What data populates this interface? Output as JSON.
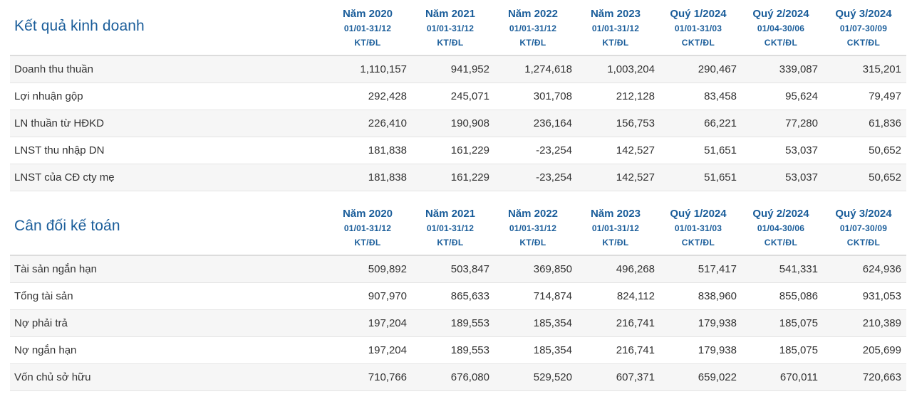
{
  "columns": [
    {
      "period": "Năm 2020",
      "range": "01/01-31/12",
      "audit": "KT/ĐL"
    },
    {
      "period": "Năm 2021",
      "range": "01/01-31/12",
      "audit": "KT/ĐL"
    },
    {
      "period": "Năm 2022",
      "range": "01/01-31/12",
      "audit": "KT/ĐL"
    },
    {
      "period": "Năm 2023",
      "range": "01/01-31/12",
      "audit": "KT/ĐL"
    },
    {
      "period": "Quý 1/2024",
      "range": "01/01-31/03",
      "audit": "CKT/ĐL"
    },
    {
      "period": "Quý 2/2024",
      "range": "01/04-30/06",
      "audit": "CKT/ĐL"
    },
    {
      "period": "Quý 3/2024",
      "range": "01/07-30/09",
      "audit": "CKT/ĐL"
    }
  ],
  "income": {
    "title": "Kết quả kinh doanh",
    "rows": [
      {
        "label": "Doanh thu thuần",
        "values": [
          "1,110,157",
          "941,952",
          "1,274,618",
          "1,003,204",
          "290,467",
          "339,087",
          "315,201"
        ]
      },
      {
        "label": "Lợi nhuận gộp",
        "values": [
          "292,428",
          "245,071",
          "301,708",
          "212,128",
          "83,458",
          "95,624",
          "79,497"
        ]
      },
      {
        "label": "LN thuần từ HĐKD",
        "values": [
          "226,410",
          "190,908",
          "236,164",
          "156,753",
          "66,221",
          "77,280",
          "61,836"
        ]
      },
      {
        "label": "LNST thu nhập DN",
        "values": [
          "181,838",
          "161,229",
          "-23,254",
          "142,527",
          "51,651",
          "53,037",
          "50,652"
        ]
      },
      {
        "label": "LNST của CĐ cty mẹ",
        "values": [
          "181,838",
          "161,229",
          "-23,254",
          "142,527",
          "51,651",
          "53,037",
          "50,652"
        ]
      }
    ]
  },
  "balance": {
    "title": "Cân đối kế toán",
    "rows": [
      {
        "label": "Tài sản ngắn hạn",
        "values": [
          "509,892",
          "503,847",
          "369,850",
          "496,268",
          "517,417",
          "541,331",
          "624,936"
        ]
      },
      {
        "label": "Tổng tài sản",
        "values": [
          "907,970",
          "865,633",
          "714,874",
          "824,112",
          "838,960",
          "855,086",
          "931,053"
        ]
      },
      {
        "label": "Nợ phải trả",
        "values": [
          "197,204",
          "189,553",
          "185,354",
          "216,741",
          "179,938",
          "185,075",
          "210,389"
        ]
      },
      {
        "label": "Nợ ngắn hạn",
        "values": [
          "197,204",
          "189,553",
          "185,354",
          "216,741",
          "179,938",
          "185,075",
          "205,699"
        ]
      },
      {
        "label": "Vốn chủ sở hữu",
        "values": [
          "710,766",
          "676,080",
          "529,520",
          "607,371",
          "659,022",
          "670,011",
          "720,663"
        ]
      }
    ]
  }
}
